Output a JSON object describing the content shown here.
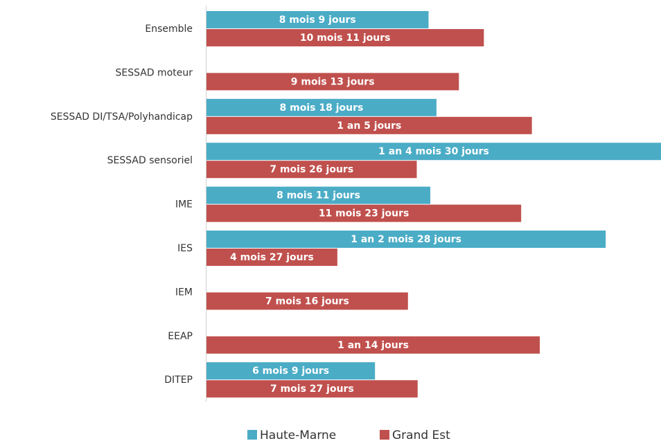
{
  "chart_data": {
    "type": "bar",
    "orientation": "horizontal",
    "categories": [
      "Ensemble",
      "SESSAD moteur",
      "SESSAD DI/TSA/Polyhandicap",
      "SESSAD sensoriel",
      "IME",
      "IES",
      "IEM",
      "EEAP",
      "DITEP"
    ],
    "series": [
      {
        "name": "Haute-Marne",
        "color": "#4bacc6",
        "values": [
          252.5,
          null,
          261.5,
          516.8,
          254.5,
          453.9,
          null,
          null,
          191.6
        ],
        "value_labels": [
          "8 mois 9 jours",
          null,
          "8 mois 18 jours",
          "1 an 4 mois 30 jours",
          "8 mois 11 jours",
          "1 an 2 mois 28 jours",
          null,
          null,
          "6 mois 9 jours"
        ]
      },
      {
        "name": "Grand Est",
        "color": "#c0504d",
        "values": [
          315.4,
          287.0,
          370,
          239.1,
          357.8,
          148.8,
          229.1,
          379,
          240.1
        ],
        "value_labels": [
          "10 mois 11 jours",
          "9 mois 13 jours",
          "1 an 5 jours",
          "7 mois 26 jours",
          "11 mois 23 jours",
          "4 mois 27 jours",
          "7 mois 16 jours",
          "1 an 14 jours",
          "7 mois 27 jours"
        ]
      }
    ],
    "legend": "bottom"
  }
}
